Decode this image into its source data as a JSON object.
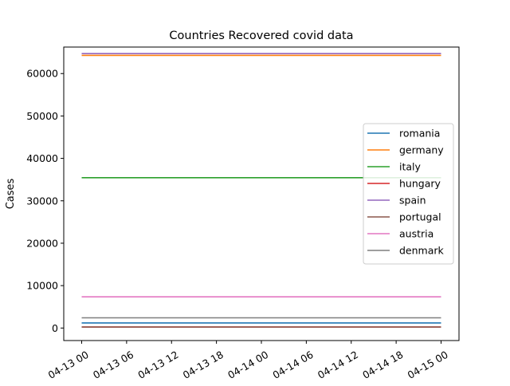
{
  "chart_data": {
    "type": "line",
    "title": "Countries Recovered covid data",
    "xlabel": "",
    "ylabel": "Cases",
    "x": [
      "2020-04-13 00:00",
      "2020-04-15 00:00"
    ],
    "x_ticks": [
      "04-13 00",
      "04-13 06",
      "04-13 12",
      "04-13 18",
      "04-14 00",
      "04-14 06",
      "04-14 12",
      "04-14 18",
      "04-15 00"
    ],
    "y_ticks": [
      0,
      10000,
      20000,
      30000,
      40000,
      50000,
      60000
    ],
    "ylim": [
      -2950,
      66250
    ],
    "grid": false,
    "legend_position": "center-right",
    "series": [
      {
        "name": "romania",
        "color": "#1f77b4",
        "values": [
          1200,
          1200
        ]
      },
      {
        "name": "germany",
        "color": "#ff7f0e",
        "values": [
          64300,
          64300
        ]
      },
      {
        "name": "italy",
        "color": "#2ca02c",
        "values": [
          35450,
          35450
        ]
      },
      {
        "name": "hungary",
        "color": "#d62728",
        "values": [
          250,
          250
        ]
      },
      {
        "name": "spain",
        "color": "#9467bd",
        "values": [
          64700,
          64700
        ]
      },
      {
        "name": "portugal",
        "color": "#8c564b",
        "values": [
          230,
          230
        ]
      },
      {
        "name": "austria",
        "color": "#e377c2",
        "values": [
          7350,
          7350
        ]
      },
      {
        "name": "denmark",
        "color": "#7f7f7f",
        "values": [
          2400,
          2400
        ]
      }
    ]
  }
}
